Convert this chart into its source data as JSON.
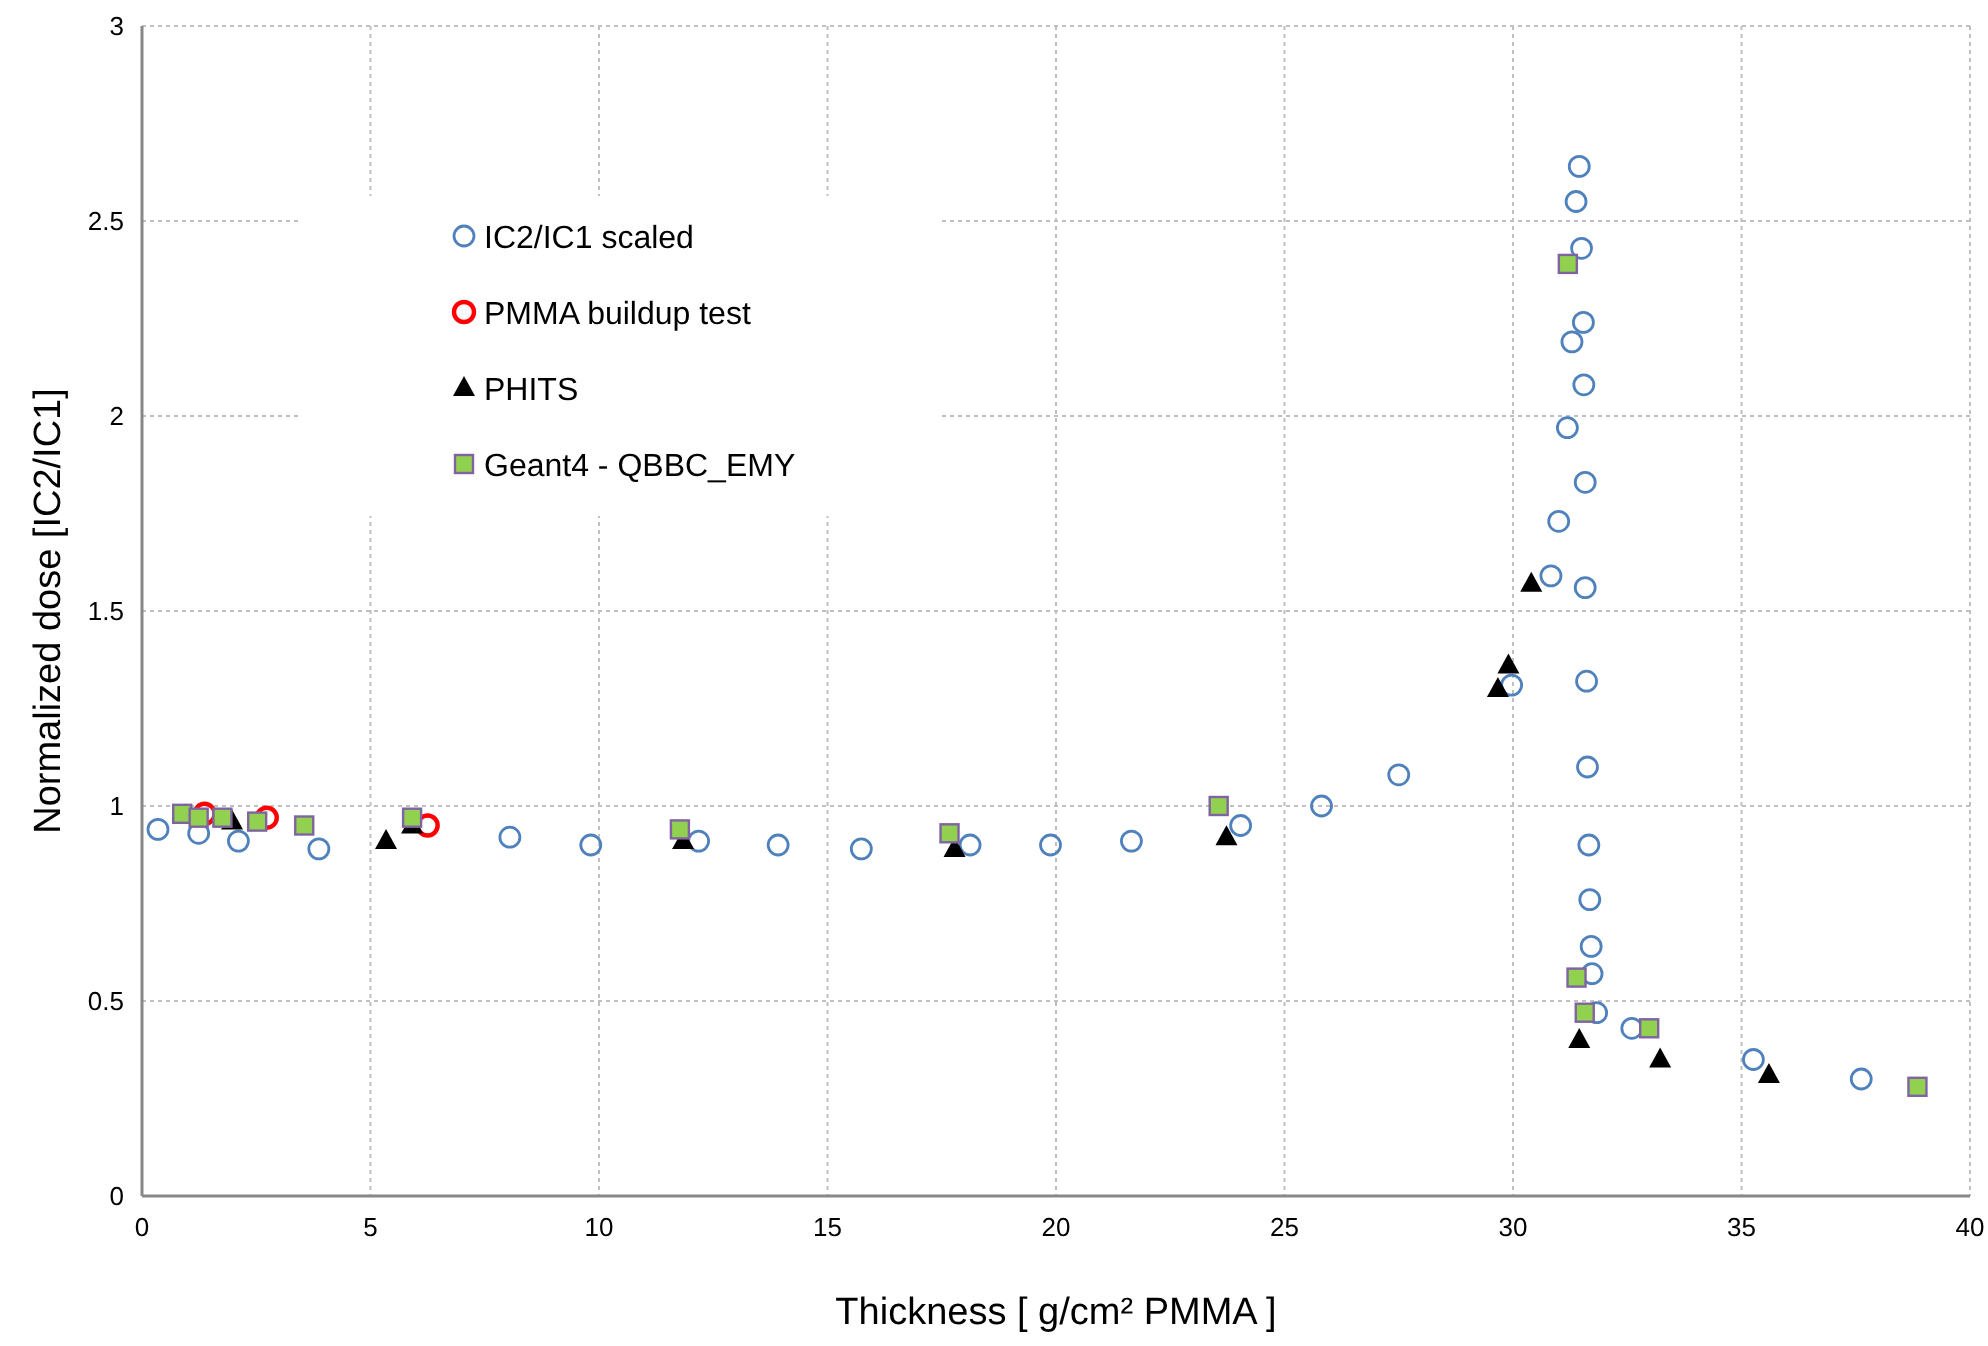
{
  "chart_data": {
    "type": "scatter",
    "xlabel": "Thickness [ g/cm² PMMA ]",
    "ylabel": "Normalized dose [IC2/IC1]",
    "xlim": [
      0,
      40
    ],
    "xticks": [
      0,
      5,
      10,
      15,
      20,
      25,
      30,
      35,
      40
    ],
    "ylim": [
      0,
      3
    ],
    "yticks": [
      0,
      0.5,
      1,
      1.5,
      2,
      2.5,
      3
    ],
    "grid": true,
    "legend": "top left",
    "series": [
      {
        "name": "IC2/IC1 scaled",
        "color": "#4f81bd",
        "marker": "circle",
        "x": [
          0.35,
          1.24,
          2.11,
          3.87,
          8.05,
          9.82,
          12.18,
          13.92,
          15.74,
          18.12,
          19.88,
          21.65,
          24.04,
          25.81,
          27.5,
          29.97,
          30.83,
          31.0,
          31.19,
          31.29,
          31.38,
          31.45,
          31.5,
          31.54,
          31.55,
          31.58,
          31.58,
          31.61,
          31.63,
          31.66,
          31.68,
          31.71,
          31.73,
          31.83,
          32.6,
          35.26,
          37.62
        ],
        "values": [
          0.94,
          0.93,
          0.91,
          0.89,
          0.92,
          0.9,
          0.91,
          0.9,
          0.89,
          0.9,
          0.9,
          0.91,
          0.95,
          1.0,
          1.08,
          1.31,
          1.59,
          1.73,
          1.97,
          2.19,
          2.55,
          2.64,
          2.43,
          2.24,
          2.08,
          1.83,
          1.56,
          1.32,
          1.1,
          0.9,
          0.76,
          0.64,
          0.57,
          0.47,
          0.43,
          0.35,
          0.3
        ]
      },
      {
        "name": "PMMA buildup test",
        "color": "#ff0000",
        "marker": "circle",
        "x": [
          1.37,
          2.73,
          6.25
        ],
        "values": [
          0.98,
          0.97,
          0.95
        ]
      },
      {
        "name": "PHITS",
        "color": "#000000",
        "marker": "triangle",
        "x": [
          1.97,
          5.34,
          5.91,
          11.84,
          17.78,
          23.73,
          29.67,
          29.9,
          30.4,
          31.45,
          33.22,
          35.6
        ],
        "values": [
          0.96,
          0.91,
          0.95,
          0.91,
          0.89,
          0.92,
          1.3,
          1.36,
          1.57,
          0.4,
          0.35,
          0.31
        ]
      },
      {
        "name": "Geant4 - QBBC_EMY",
        "color": "#92d050",
        "marker": "square",
        "x": [
          0.88,
          1.24,
          1.76,
          2.52,
          3.55,
          5.91,
          11.77,
          17.67,
          23.56,
          31.2,
          31.39,
          31.57,
          32.98,
          38.85
        ],
        "values": [
          0.98,
          0.97,
          0.97,
          0.96,
          0.95,
          0.97,
          0.94,
          0.93,
          1.0,
          2.39,
          0.56,
          0.47,
          0.43,
          0.28
        ]
      }
    ]
  }
}
